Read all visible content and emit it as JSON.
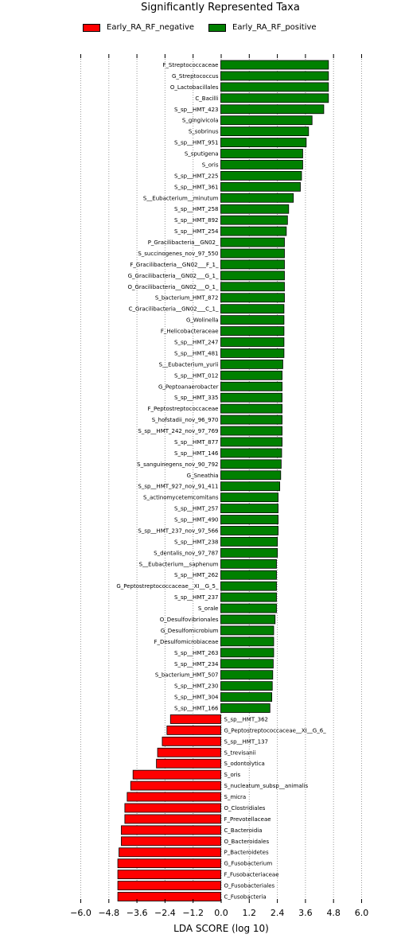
{
  "chart_data": {
    "type": "bar",
    "orientation": "horizontal",
    "title": "Significantly Represented Taxa",
    "xlabel": "LDA SCORE (log 10)",
    "xlim": [
      -6.0,
      6.0
    ],
    "xticks": [
      -6.0,
      -4.8,
      -3.6,
      -2.4,
      -1.2,
      0.0,
      1.2,
      2.4,
      3.6,
      4.8,
      6.0
    ],
    "xtick_labels": [
      "−6.0",
      "−4.8",
      "−3.6",
      "−2.4",
      "−1.2",
      "0.0",
      "1.2",
      "2.4",
      "3.6",
      "4.8",
      "6.0"
    ],
    "grid": "vertical dotted",
    "legend_position": "top",
    "series": [
      {
        "name": "Early_RA_RF_negative",
        "color": "#ff0000"
      },
      {
        "name": "Early_RA_RF_positive",
        "color": "#008000"
      }
    ],
    "bars": [
      {
        "label": "F_Streptococcaceae",
        "value": 4.6,
        "group": "Early_RA_RF_positive"
      },
      {
        "label": "G_Streptococcus",
        "value": 4.6,
        "group": "Early_RA_RF_positive"
      },
      {
        "label": "O_Lactobacillales",
        "value": 4.6,
        "group": "Early_RA_RF_positive"
      },
      {
        "label": "C_Bacilli",
        "value": 4.6,
        "group": "Early_RA_RF_positive"
      },
      {
        "label": "S_sp__HMT_423",
        "value": 4.4,
        "group": "Early_RA_RF_positive"
      },
      {
        "label": "S_gingivicola",
        "value": 3.9,
        "group": "Early_RA_RF_positive"
      },
      {
        "label": "S_sobrinus",
        "value": 3.75,
        "group": "Early_RA_RF_positive"
      },
      {
        "label": "S_sp__HMT_951",
        "value": 3.65,
        "group": "Early_RA_RF_positive"
      },
      {
        "label": "S_sputigena",
        "value": 3.5,
        "group": "Early_RA_RF_positive"
      },
      {
        "label": "S_oris",
        "value": 3.5,
        "group": "Early_RA_RF_positive"
      },
      {
        "label": "S_sp__HMT_225",
        "value": 3.45,
        "group": "Early_RA_RF_positive"
      },
      {
        "label": "S_sp__HMT_361",
        "value": 3.4,
        "group": "Early_RA_RF_positive"
      },
      {
        "label": "S__Eubacterium__minutum",
        "value": 3.1,
        "group": "Early_RA_RF_positive"
      },
      {
        "label": "S_sp__HMT_258",
        "value": 2.9,
        "group": "Early_RA_RF_positive"
      },
      {
        "label": "S_sp__HMT_892",
        "value": 2.85,
        "group": "Early_RA_RF_positive"
      },
      {
        "label": "S_sp__HMT_254",
        "value": 2.8,
        "group": "Early_RA_RF_positive"
      },
      {
        "label": "P_Gracilibacteria__GN02_",
        "value": 2.72,
        "group": "Early_RA_RF_positive"
      },
      {
        "label": "S_succinogenes_nov_97_550",
        "value": 2.72,
        "group": "Early_RA_RF_positive"
      },
      {
        "label": "F_Gracilibacteria__GN02___F_1_",
        "value": 2.72,
        "group": "Early_RA_RF_positive"
      },
      {
        "label": "G_Gracilibacteria__GN02___G_1_",
        "value": 2.72,
        "group": "Early_RA_RF_positive"
      },
      {
        "label": "O_Gracilibacteria__GN02___O_1_",
        "value": 2.72,
        "group": "Early_RA_RF_positive"
      },
      {
        "label": "S_bacterium_HMT_872",
        "value": 2.72,
        "group": "Early_RA_RF_positive"
      },
      {
        "label": "C_Gracilibacteria__GN02___C_1_",
        "value": 2.7,
        "group": "Early_RA_RF_positive"
      },
      {
        "label": "G_Wolinella",
        "value": 2.7,
        "group": "Early_RA_RF_positive"
      },
      {
        "label": "F_Helicobacteraceae",
        "value": 2.7,
        "group": "Early_RA_RF_positive"
      },
      {
        "label": "S_sp__HMT_247",
        "value": 2.7,
        "group": "Early_RA_RF_positive"
      },
      {
        "label": "S_sp__HMT_481",
        "value": 2.7,
        "group": "Early_RA_RF_positive"
      },
      {
        "label": "S__Eubacterium_yurii",
        "value": 2.65,
        "group": "Early_RA_RF_positive"
      },
      {
        "label": "S_sp__HMT_012",
        "value": 2.62,
        "group": "Early_RA_RF_positive"
      },
      {
        "label": "G_Peptoanaerobacter",
        "value": 2.62,
        "group": "Early_RA_RF_positive"
      },
      {
        "label": "S_sp__HMT_335",
        "value": 2.62,
        "group": "Early_RA_RF_positive"
      },
      {
        "label": "F_Peptostreptococcaceae",
        "value": 2.62,
        "group": "Early_RA_RF_positive"
      },
      {
        "label": "S_hofstadii_nov_96_970",
        "value": 2.62,
        "group": "Early_RA_RF_positive"
      },
      {
        "label": "S_sp__HMT_242_nov_97_769",
        "value": 2.62,
        "group": "Early_RA_RF_positive"
      },
      {
        "label": "S_sp__HMT_877",
        "value": 2.62,
        "group": "Early_RA_RF_positive"
      },
      {
        "label": "S_sp__HMT_146",
        "value": 2.6,
        "group": "Early_RA_RF_positive"
      },
      {
        "label": "S_sanguinegens_nov_90_792",
        "value": 2.58,
        "group": "Early_RA_RF_positive"
      },
      {
        "label": "G_Sneathia",
        "value": 2.56,
        "group": "Early_RA_RF_positive"
      },
      {
        "label": "S_sp__HMT_927_nov_91_411",
        "value": 2.52,
        "group": "Early_RA_RF_positive"
      },
      {
        "label": "S_actinomycetemcomitans",
        "value": 2.45,
        "group": "Early_RA_RF_positive"
      },
      {
        "label": "S_sp__HMT_257",
        "value": 2.45,
        "group": "Early_RA_RF_positive"
      },
      {
        "label": "S_sp__HMT_490",
        "value": 2.45,
        "group": "Early_RA_RF_positive"
      },
      {
        "label": "S_sp__HMT_237_nov_97_566",
        "value": 2.45,
        "group": "Early_RA_RF_positive"
      },
      {
        "label": "S_sp__HMT_238",
        "value": 2.42,
        "group": "Early_RA_RF_positive"
      },
      {
        "label": "S_dentalis_nov_97_787",
        "value": 2.42,
        "group": "Early_RA_RF_positive"
      },
      {
        "label": "S__Eubacterium__saphenum",
        "value": 2.38,
        "group": "Early_RA_RF_positive"
      },
      {
        "label": "S_sp__HMT_262",
        "value": 2.38,
        "group": "Early_RA_RF_positive"
      },
      {
        "label": "G_Peptostreptococcaceae__XI__G_5_",
        "value": 2.38,
        "group": "Early_RA_RF_positive"
      },
      {
        "label": "S_sp__HMT_237",
        "value": 2.38,
        "group": "Early_RA_RF_positive"
      },
      {
        "label": "S_orale",
        "value": 2.38,
        "group": "Early_RA_RF_positive"
      },
      {
        "label": "O_Desulfovibrionales",
        "value": 2.32,
        "group": "Early_RA_RF_positive"
      },
      {
        "label": "G_Desulfomicrobium",
        "value": 2.26,
        "group": "Early_RA_RF_positive"
      },
      {
        "label": "F_Desulfomicrobiaceae",
        "value": 2.26,
        "group": "Early_RA_RF_positive"
      },
      {
        "label": "S_sp__HMT_263",
        "value": 2.26,
        "group": "Early_RA_RF_positive"
      },
      {
        "label": "S_sp__HMT_234",
        "value": 2.24,
        "group": "Early_RA_RF_positive"
      },
      {
        "label": "S_bacterium_HMT_507",
        "value": 2.22,
        "group": "Early_RA_RF_positive"
      },
      {
        "label": "S_sp__HMT_230",
        "value": 2.2,
        "group": "Early_RA_RF_positive"
      },
      {
        "label": "S_sp__HMT_304",
        "value": 2.18,
        "group": "Early_RA_RF_positive"
      },
      {
        "label": "S_sp__HMT_166",
        "value": 2.1,
        "group": "Early_RA_RF_positive"
      },
      {
        "label": "S_sp__HMT_362",
        "value": -2.15,
        "group": "Early_RA_RF_negative"
      },
      {
        "label": "G_Peptostreptococcaceae__XI__G_6_",
        "value": -2.3,
        "group": "Early_RA_RF_negative"
      },
      {
        "label": "S_sp__HMT_137",
        "value": -2.5,
        "group": "Early_RA_RF_negative"
      },
      {
        "label": "S_trevisanii",
        "value": -2.7,
        "group": "Early_RA_RF_negative"
      },
      {
        "label": "S_odontolytica",
        "value": -2.75,
        "group": "Early_RA_RF_negative"
      },
      {
        "label": "S_oris",
        "value": -3.75,
        "group": "Early_RA_RF_negative"
      },
      {
        "label": "S_nucleatum_subsp__animalis",
        "value": -3.85,
        "group": "Early_RA_RF_negative"
      },
      {
        "label": "S_micra",
        "value": -4.0,
        "group": "Early_RA_RF_negative"
      },
      {
        "label": "O_Clostridiales",
        "value": -4.1,
        "group": "Early_RA_RF_negative"
      },
      {
        "label": "F_Prevotellaceae",
        "value": -4.1,
        "group": "Early_RA_RF_negative"
      },
      {
        "label": "C_Bacteroidia",
        "value": -4.25,
        "group": "Early_RA_RF_negative"
      },
      {
        "label": "O_Bacteroidales",
        "value": -4.25,
        "group": "Early_RA_RF_negative"
      },
      {
        "label": "P_Bacteroidetes",
        "value": -4.35,
        "group": "Early_RA_RF_negative"
      },
      {
        "label": "G_Fusobacterium",
        "value": -4.4,
        "group": "Early_RA_RF_negative"
      },
      {
        "label": "F_Fusobacteriaceae",
        "value": -4.4,
        "group": "Early_RA_RF_negative"
      },
      {
        "label": "O_Fusobacteriales",
        "value": -4.4,
        "group": "Early_RA_RF_negative"
      },
      {
        "label": "C_Fusobacteria",
        "value": -4.4,
        "group": "Early_RA_RF_negative"
      }
    ]
  }
}
